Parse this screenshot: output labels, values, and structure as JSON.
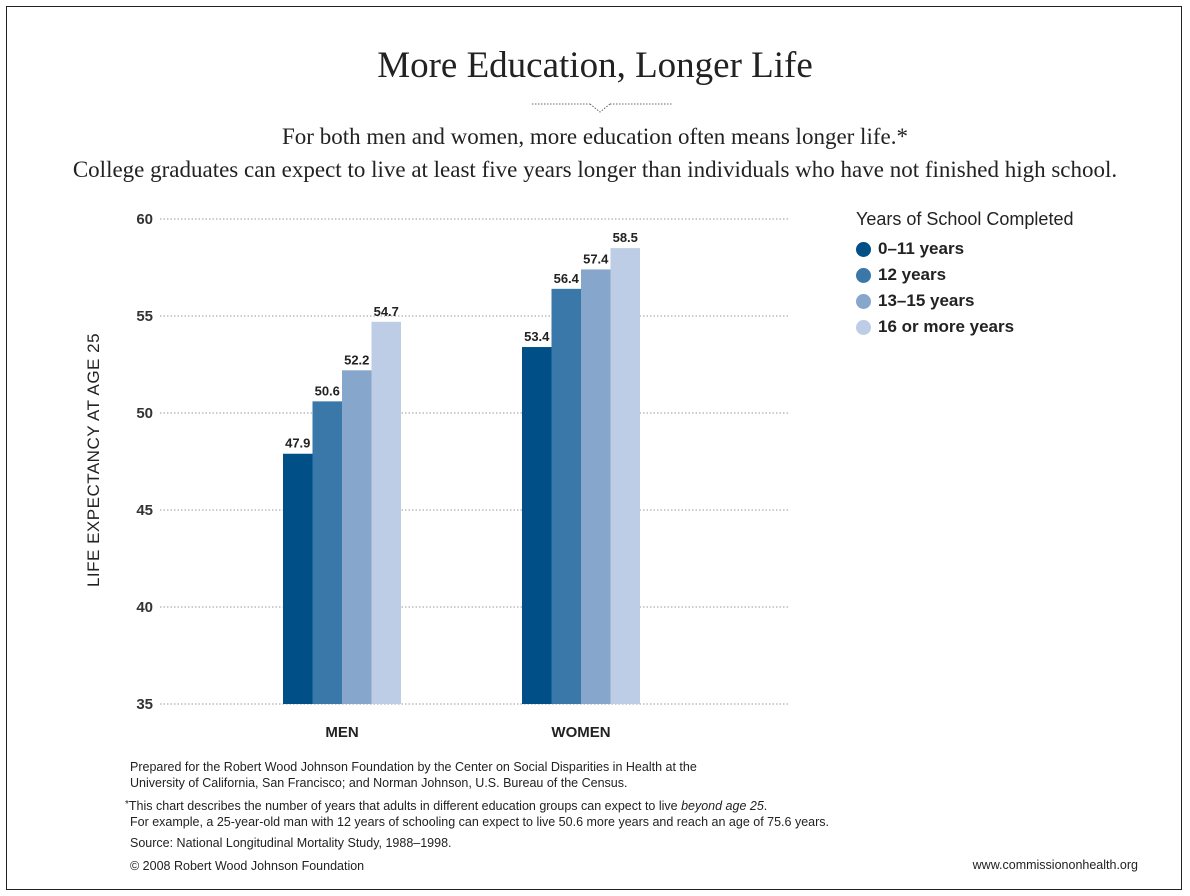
{
  "header": {
    "title": "More Education, Longer Life",
    "subtitle_line1": "For both men and women, more education often means longer life.*",
    "subtitle_line2": "College graduates can expect to live at least five years longer than individuals who have not finished high school."
  },
  "chart_data": {
    "type": "bar",
    "categories": [
      "MEN",
      "WOMEN"
    ],
    "ylabel": "LIFE EXPECTANCY AT AGE 25",
    "xlabel": "",
    "ylim": [
      35,
      60
    ],
    "yticks": [
      35,
      40,
      45,
      50,
      55,
      60
    ],
    "grid": true,
    "legend_title": "Years of School Completed",
    "legend_position": "top-right",
    "series": [
      {
        "name": "0–11 years",
        "color": "#004f86",
        "values": [
          47.9,
          53.4
        ]
      },
      {
        "name": "12 years",
        "color": "#3a78aa",
        "values": [
          50.6,
          56.4
        ]
      },
      {
        "name": "13–15 years",
        "color": "#86a6cb",
        "values": [
          52.2,
          57.4
        ]
      },
      {
        "name": "16 or more years",
        "color": "#bccde5",
        "values": [
          54.7,
          58.5
        ]
      }
    ]
  },
  "footer": {
    "prepared_line1": "Prepared for the Robert Wood Johnson Foundation by the Center on Social Disparities in Health at the",
    "prepared_line2": "University of California, San Francisco; and Norman Johnson, U.S. Bureau of the Census.",
    "note_asterisk": "*",
    "note_line1_main": "This chart describes the number of years that adults in different education groups can expect to live ",
    "note_line1_em": "beyond age 25",
    "note_line1_end": ".",
    "note_line2": "For example, a 25-year-old man with 12 years of schooling can expect to live 50.6 more years and reach an age of 75.6 years.",
    "source": "Source: National Longitudinal Mortality Study, 1988–1998.",
    "copyright": "© 2008 Robert Wood Johnson Foundation",
    "url": "www.commissiononhealth.org"
  }
}
